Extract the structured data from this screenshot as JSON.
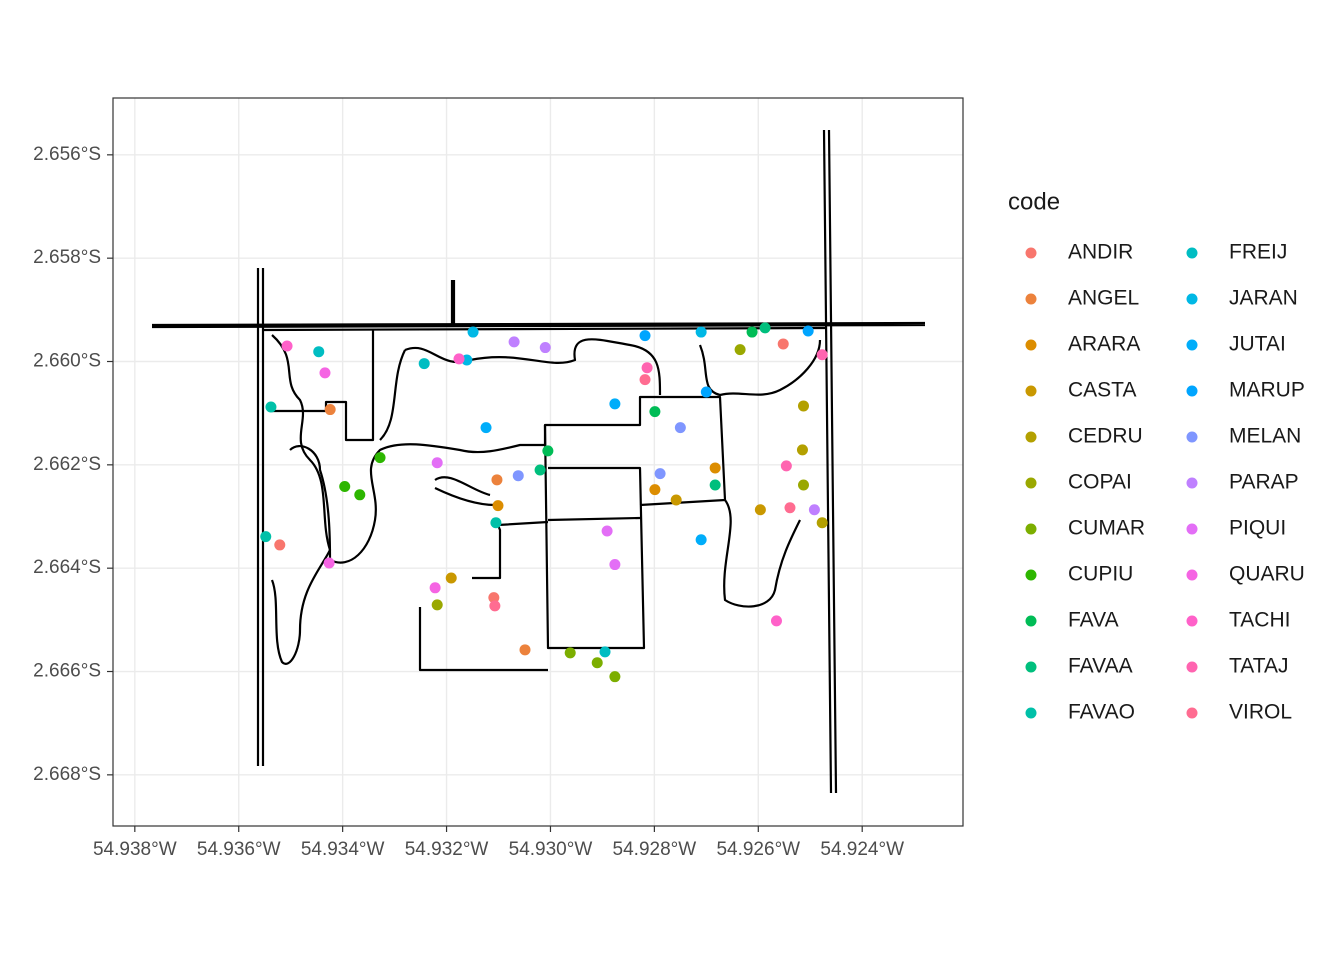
{
  "chart_data": {
    "type": "scatter",
    "legend_title": "code",
    "legend": "right",
    "grid": true,
    "xlim": [
      -54.93842,
      -54.92206
    ],
    "ylim": [
      -2.66899,
      -2.6549
    ],
    "xticks": [
      {
        "value": -54.938,
        "label": "54.938°W"
      },
      {
        "value": -54.936,
        "label": "54.936°W"
      },
      {
        "value": -54.934,
        "label": "54.934°W"
      },
      {
        "value": -54.932,
        "label": "54.932°W"
      },
      {
        "value": -54.93,
        "label": "54.930°W"
      },
      {
        "value": -54.928,
        "label": "54.928°W"
      },
      {
        "value": -54.926,
        "label": "54.926°W"
      },
      {
        "value": -54.924,
        "label": "54.924°W"
      }
    ],
    "yticks": [
      {
        "value": -2.656,
        "label": "2.656°S"
      },
      {
        "value": -2.658,
        "label": "2.658°S"
      },
      {
        "value": -2.66,
        "label": "2.660°S"
      },
      {
        "value": -2.662,
        "label": "2.662°S"
      },
      {
        "value": -2.664,
        "label": "2.664°S"
      },
      {
        "value": -2.666,
        "label": "2.666°S"
      },
      {
        "value": -2.668,
        "label": "2.668°S"
      }
    ],
    "series": [
      {
        "name": "ANDIR",
        "color": "#F8766D",
        "x": [
          -54.93521,
          -54.93109,
          -54.92552
        ],
        "values": [
          -2.66355,
          -2.66457,
          -2.65966
        ]
      },
      {
        "name": "ANGEL",
        "color": "#EC823C",
        "x": [
          -54.93424,
          -54.93103,
          -54.93049
        ],
        "values": [
          -2.66093,
          -2.66229,
          -2.66558
        ]
      },
      {
        "name": "ARARA",
        "color": "#DC8D00",
        "x": [
          -54.92799,
          -54.93101,
          -54.92683
        ],
        "values": [
          -2.66248,
          -2.66279,
          -2.66206
        ]
      },
      {
        "name": "CASTA",
        "color": "#C99800",
        "x": [
          -54.93191,
          -54.92758,
          -54.92596
        ],
        "values": [
          -2.66419,
          -2.66268,
          -2.66287
        ]
      },
      {
        "name": "CEDRU",
        "color": "#B3A000",
        "x": [
          -54.92513,
          -54.92515,
          -54.92477
        ],
        "values": [
          -2.66086,
          -2.66171,
          -2.66312
        ]
      },
      {
        "name": "COPAI",
        "color": "#9AA800",
        "x": [
          -54.93218,
          -54.92513,
          -54.92635
        ],
        "values": [
          -2.66471,
          -2.66239,
          -2.65977
        ]
      },
      {
        "name": "CUMAR",
        "color": "#7CAE00",
        "x": [
          -54.92962,
          -54.9291,
          -54.92876
        ],
        "values": [
          -2.66564,
          -2.66583,
          -2.6661
        ]
      },
      {
        "name": "CUPIU",
        "color": "#2DB600",
        "x": [
          -54.93328,
          -54.93396,
          -54.93367
        ],
        "values": [
          -2.66186,
          -2.66242,
          -2.66258
        ]
      },
      {
        "name": "FAVA",
        "color": "#00BC56",
        "x": [
          -54.93005,
          -54.92799,
          -54.92612
        ],
        "values": [
          -2.66173,
          -2.66097,
          -2.65943
        ]
      },
      {
        "name": "FAVAA",
        "color": "#00BF7D",
        "x": [
          -54.92683,
          -54.9302,
          -54.92587
        ],
        "values": [
          -2.66239,
          -2.6621,
          -2.65935
        ]
      },
      {
        "name": "FAVAO",
        "color": "#00C0A8",
        "x": [
          -54.93538,
          -54.93548,
          -54.93105
        ],
        "values": [
          -2.66088,
          -2.66339,
          -2.66312
        ]
      },
      {
        "name": "FREIJ",
        "color": "#00BDC2",
        "x": [
          -54.93446,
          -54.93243,
          -54.92895
        ],
        "values": [
          -2.65981,
          -2.66004,
          -2.66562
        ]
      },
      {
        "name": "JARAN",
        "color": "#00B8E5",
        "x": [
          -54.93149,
          -54.93161,
          -54.9271
        ],
        "values": [
          -2.65943,
          -2.65997,
          -2.65943
        ]
      },
      {
        "name": "JUTAI",
        "color": "#00ADFA",
        "x": [
          -54.93124,
          -54.92876,
          -54.9271
        ],
        "values": [
          -2.66128,
          -2.66082,
          -2.66345
        ]
      },
      {
        "name": "MARUP",
        "color": "#00A5FF",
        "x": [
          -54.92818,
          -54.927,
          -54.92504
        ],
        "values": [
          -2.6595,
          -2.66059,
          -2.65941
        ]
      },
      {
        "name": "MELAN",
        "color": "#7F96FF",
        "x": [
          -54.92789,
          -54.9275,
          -54.93062
        ],
        "values": [
          -2.66217,
          -2.66128,
          -2.66221
        ]
      },
      {
        "name": "PARAP",
        "color": "#BF80FF",
        "x": [
          -54.9307,
          -54.9301,
          -54.92492
        ],
        "values": [
          -2.65962,
          -2.65973,
          -2.66287
        ]
      },
      {
        "name": "PIQUI",
        "color": "#E36EF6",
        "x": [
          -54.92891,
          -54.92876,
          -54.93218
        ],
        "values": [
          -2.66328,
          -2.66393,
          -2.66196
        ]
      },
      {
        "name": "QUARU",
        "color": "#F564E3",
        "x": [
          -54.93434,
          -54.93426,
          -54.93222
        ],
        "values": [
          -2.66022,
          -2.6639,
          -2.66438
        ]
      },
      {
        "name": "TACHI",
        "color": "#FF61C9",
        "x": [
          -54.93507,
          -54.93176,
          -54.92565
        ],
        "values": [
          -2.6597,
          -2.65995,
          -2.66502
        ]
      },
      {
        "name": "TATAJ",
        "color": "#FF64B0",
        "x": [
          -54.92814,
          -54.92546,
          -54.92477
        ],
        "values": [
          -2.66012,
          -2.66202,
          -2.65987
        ]
      },
      {
        "name": "VIROL",
        "color": "#FF6C91",
        "x": [
          -54.92818,
          -54.93107,
          -54.92539
        ],
        "values": [
          -2.66035,
          -2.66473,
          -2.66283
        ]
      }
    ]
  }
}
